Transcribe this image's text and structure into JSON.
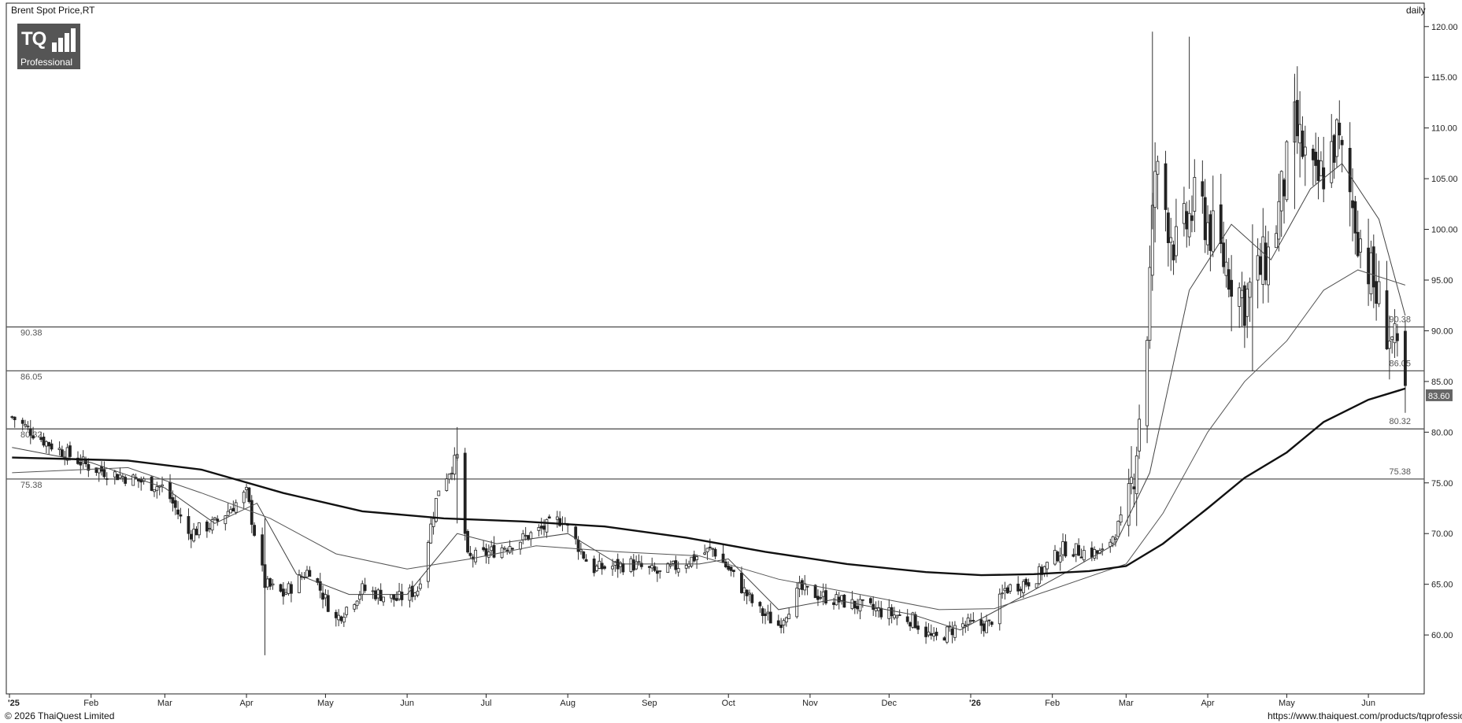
{
  "header": {
    "title": "Brent Spot Price,RT",
    "interval": "daily"
  },
  "logo": {
    "brand": "TQ",
    "tagline": "Professional"
  },
  "footer": {
    "copyright": "© 2026 ThaiQuest Limited",
    "url": "https://www.thaiquest.com/products/tqprofessional/"
  },
  "chart_data": {
    "type": "candlestick",
    "title": "Brent Spot Price,RT",
    "interval": "daily",
    "ylim": [
      54.5,
      122
    ],
    "y_ticks": [
      "120.00",
      "115.00",
      "110.00",
      "105.00",
      "100.00",
      "95.00",
      "90.00",
      "85.00",
      "80.00",
      "75.00",
      "70.00",
      "65.00",
      "60.00"
    ],
    "x_month_labels": [
      {
        "label": "'25",
        "date": "2025-01-01"
      },
      {
        "label": "Feb",
        "date": "2025-02-01"
      },
      {
        "label": "Mar",
        "date": "2025-03-01"
      },
      {
        "label": "Apr",
        "date": "2025-04-01"
      },
      {
        "label": "May",
        "date": "2025-05-01"
      },
      {
        "label": "Jun",
        "date": "2025-06-01"
      },
      {
        "label": "Jul",
        "date": "2025-07-01"
      },
      {
        "label": "Aug",
        "date": "2025-08-01"
      },
      {
        "label": "Sep",
        "date": "2025-09-01"
      },
      {
        "label": "Oct",
        "date": "2025-10-01"
      },
      {
        "label": "Nov",
        "date": "2025-11-01"
      },
      {
        "label": "Dec",
        "date": "2025-12-01"
      },
      {
        "label": "'26",
        "date": "2026-01-01"
      },
      {
        "label": "Feb",
        "date": "2026-02-01"
      },
      {
        "label": "Mar",
        "date": "2026-03-01"
      },
      {
        "label": "Apr",
        "date": "2026-04-01"
      },
      {
        "label": "May",
        "date": "2026-05-01"
      },
      {
        "label": "Jun",
        "date": "2026-06-01"
      }
    ],
    "horizontal_levels": [
      {
        "value": 90.38,
        "label": "90.38"
      },
      {
        "value": 86.05,
        "label": "86.05"
      },
      {
        "value": 80.32,
        "label": "80.32"
      },
      {
        "value": 75.38,
        "label": "75.38"
      }
    ],
    "last_price": {
      "value": 83.6,
      "label": "83.60"
    },
    "close_path": [
      [
        "2025-01-02",
        81.5
      ],
      [
        "2025-01-15",
        79.0
      ],
      [
        "2025-02-01",
        76.5
      ],
      [
        "2025-02-15",
        75.5
      ],
      [
        "2025-03-01",
        74.5
      ],
      [
        "2025-03-10",
        70.0
      ],
      [
        "2025-03-20",
        71.0
      ],
      [
        "2025-04-01",
        74.0
      ],
      [
        "2025-04-08",
        65.0
      ],
      [
        "2025-04-15",
        64.0
      ],
      [
        "2025-04-25",
        66.5
      ],
      [
        "2025-05-05",
        61.5
      ],
      [
        "2025-05-15",
        64.5
      ],
      [
        "2025-05-28",
        63.5
      ],
      [
        "2025-06-05",
        64.5
      ],
      [
        "2025-06-13",
        74.5
      ],
      [
        "2025-06-20",
        77.5
      ],
      [
        "2025-06-24",
        67.5
      ],
      [
        "2025-07-01",
        68.0
      ],
      [
        "2025-07-15",
        69.5
      ],
      [
        "2025-07-30",
        71.5
      ],
      [
        "2025-08-10",
        66.5
      ],
      [
        "2025-08-25",
        67.0
      ],
      [
        "2025-09-05",
        66.0
      ],
      [
        "2025-09-25",
        68.5
      ],
      [
        "2025-10-01",
        66.5
      ],
      [
        "2025-10-12",
        62.5
      ],
      [
        "2025-10-20",
        61.0
      ],
      [
        "2025-10-28",
        64.5
      ],
      [
        "2025-11-10",
        63.5
      ],
      [
        "2025-11-25",
        62.5
      ],
      [
        "2025-12-10",
        61.5
      ],
      [
        "2025-12-18",
        59.5
      ],
      [
        "2025-12-28",
        61.0
      ],
      [
        "2026-01-08",
        61.0
      ],
      [
        "2026-01-14",
        64.5
      ],
      [
        "2026-01-25",
        65.5
      ],
      [
        "2026-02-05",
        68.5
      ],
      [
        "2026-02-20",
        68.0
      ],
      [
        "2026-03-02",
        72.5
      ],
      [
        "2026-03-05",
        79.0
      ],
      [
        "2026-03-09",
        90.0
      ],
      [
        "2026-03-12",
        106.0
      ],
      [
        "2026-03-20",
        98.0
      ],
      [
        "2026-03-28",
        103.0
      ],
      [
        "2026-04-05",
        98.0
      ],
      [
        "2026-04-15",
        93.0
      ],
      [
        "2026-04-25",
        98.0
      ],
      [
        "2026-05-04",
        110.0
      ],
      [
        "2026-05-12",
        104.0
      ],
      [
        "2026-05-20",
        109.0
      ],
      [
        "2026-05-28",
        100.0
      ],
      [
        "2026-06-04",
        93.5
      ],
      [
        "2026-06-10",
        89.0
      ],
      [
        "2026-06-15",
        83.6
      ]
    ],
    "spikes": [
      {
        "date": "2025-06-20",
        "high": 80.5,
        "low": 71.0
      },
      {
        "date": "2025-04-08",
        "high": 71.5,
        "low": 58.0
      },
      {
        "date": "2026-03-11",
        "high": 119.5,
        "low": 100.0
      },
      {
        "date": "2026-03-25",
        "high": 119.0,
        "low": 104.0
      },
      {
        "date": "2026-04-18",
        "high": 100.5,
        "low": 86.0
      },
      {
        "date": "2026-05-04",
        "high": 115.0,
        "low": 102.0
      }
    ],
    "ma_200": [
      [
        "2025-01-02",
        77.5
      ],
      [
        "2025-02-15",
        77.2
      ],
      [
        "2025-03-15",
        76.3
      ],
      [
        "2025-04-15",
        74.0
      ],
      [
        "2025-05-15",
        72.2
      ],
      [
        "2025-06-15",
        71.5
      ],
      [
        "2025-07-15",
        71.2
      ],
      [
        "2025-08-15",
        70.7
      ],
      [
        "2025-09-15",
        69.6
      ],
      [
        "2025-10-15",
        68.2
      ],
      [
        "2025-11-15",
        67.0
      ],
      [
        "2025-12-15",
        66.2
      ],
      [
        "2026-01-05",
        65.9
      ],
      [
        "2026-01-25",
        66.0
      ],
      [
        "2026-02-15",
        66.3
      ],
      [
        "2026-03-01",
        66.8
      ],
      [
        "2026-03-15",
        69.0
      ],
      [
        "2026-04-01",
        72.5
      ],
      [
        "2026-04-15",
        75.5
      ],
      [
        "2026-05-01",
        78.0
      ],
      [
        "2026-05-15",
        81.0
      ],
      [
        "2026-06-01",
        83.2
      ],
      [
        "2026-06-15",
        84.3
      ]
    ],
    "ma_50": [
      [
        "2025-01-02",
        76.0
      ],
      [
        "2025-02-15",
        76.5
      ],
      [
        "2025-03-15",
        74.0
      ],
      [
        "2025-04-10",
        71.5
      ],
      [
        "2025-05-05",
        68.0
      ],
      [
        "2025-06-01",
        66.5
      ],
      [
        "2025-06-25",
        67.5
      ],
      [
        "2025-07-20",
        68.8
      ],
      [
        "2025-08-20",
        68.2
      ],
      [
        "2025-09-20",
        67.8
      ],
      [
        "2025-10-20",
        65.5
      ],
      [
        "2025-11-20",
        64.0
      ],
      [
        "2025-12-20",
        62.5
      ],
      [
        "2026-01-10",
        62.6
      ],
      [
        "2026-02-01",
        64.5
      ],
      [
        "2026-03-01",
        67.0
      ],
      [
        "2026-03-15",
        72.0
      ],
      [
        "2026-04-01",
        80.0
      ],
      [
        "2026-04-15",
        85.0
      ],
      [
        "2026-05-01",
        89.0
      ],
      [
        "2026-05-15",
        94.0
      ],
      [
        "2026-05-28",
        96.0
      ],
      [
        "2026-06-15",
        94.5
      ]
    ],
    "ma_20": [
      [
        "2025-01-02",
        78.5
      ],
      [
        "2025-02-01",
        77.0
      ],
      [
        "2025-03-01",
        74.5
      ],
      [
        "2025-03-20",
        71.0
      ],
      [
        "2025-04-05",
        73.0
      ],
      [
        "2025-04-20",
        66.0
      ],
      [
        "2025-05-10",
        64.0
      ],
      [
        "2025-06-01",
        64.0
      ],
      [
        "2025-06-20",
        70.0
      ],
      [
        "2025-07-05",
        69.0
      ],
      [
        "2025-08-01",
        70.0
      ],
      [
        "2025-08-20",
        67.0
      ],
      [
        "2025-09-20",
        67.0
      ],
      [
        "2025-10-01",
        67.5
      ],
      [
        "2025-10-20",
        62.5
      ],
      [
        "2025-11-10",
        63.5
      ],
      [
        "2025-12-10",
        62.0
      ],
      [
        "2025-12-28",
        60.5
      ],
      [
        "2026-01-15",
        63.0
      ],
      [
        "2026-02-05",
        66.0
      ],
      [
        "2026-02-25",
        69.0
      ],
      [
        "2026-03-10",
        76.0
      ],
      [
        "2026-03-25",
        94.0
      ],
      [
        "2026-04-10",
        100.5
      ],
      [
        "2026-04-25",
        97.0
      ],
      [
        "2026-05-10",
        104.0
      ],
      [
        "2026-05-22",
        106.5
      ],
      [
        "2026-06-05",
        101.0
      ],
      [
        "2026-06-15",
        91.5
      ]
    ]
  }
}
